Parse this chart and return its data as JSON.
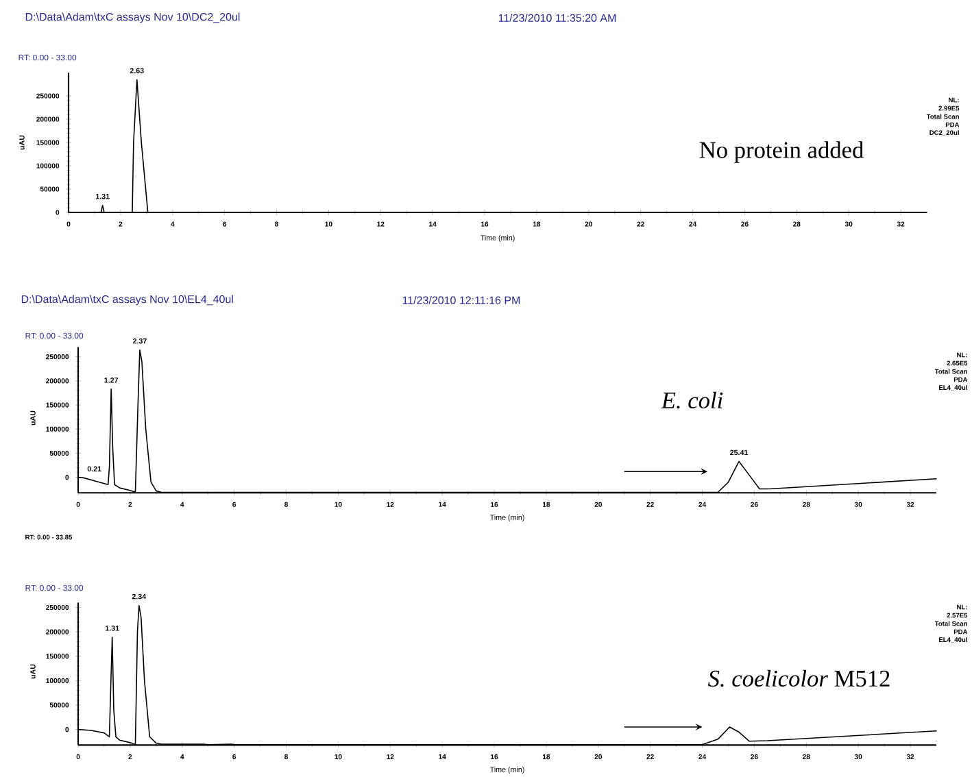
{
  "chart_data": [
    {
      "type": "line",
      "title": "D:\\Data\\Adam\\txC assays Nov 10\\DC2_20ul",
      "subtitle": "11/23/2010 11:35:20 AM",
      "xlabel": "Time (min)",
      "ylabel": "uAU",
      "color": "#000000",
      "x": [
        0,
        1.25,
        1.31,
        1.37,
        2.45,
        2.5,
        2.63,
        2.8,
        3.05,
        33
      ],
      "values": [
        0,
        0,
        15000,
        0,
        0,
        150000,
        285000,
        150000,
        0,
        0
      ],
      "xlim": [
        0,
        33
      ],
      "ylim": [
        0,
        300000
      ],
      "xticks": [
        0,
        2,
        4,
        6,
        8,
        10,
        12,
        14,
        16,
        18,
        20,
        22,
        24,
        26,
        28,
        30,
        32
      ],
      "yticks": [
        0,
        50000,
        100000,
        150000,
        200000,
        250000
      ],
      "annotations": [
        "RT: 0.00 - 33.00",
        "NL:",
        "2.99E5",
        "Total Scan",
        "PDA",
        "DC2_20ul",
        "No protein added",
        {
          "text": "1.31",
          "x": 1.31,
          "y": 15000
        },
        {
          "text": "2.63",
          "x": 2.63,
          "y": 285000
        }
      ]
    },
    {
      "type": "line",
      "title": "D:\\Data\\Adam\\txC assays Nov 10\\EL4_40ul",
      "subtitle": "11/23/2010 12:11:16 PM",
      "xlabel": "Time (min)",
      "ylabel": "uAU",
      "color": "#000000",
      "x": [
        0,
        0.21,
        0.6,
        1.15,
        1.2,
        1.27,
        1.33,
        1.4,
        1.6,
        2.0,
        2.15,
        2.2,
        2.3,
        2.37,
        2.45,
        2.6,
        2.8,
        3.0,
        3.2,
        24.6,
        25.0,
        25.41,
        25.8,
        26.2,
        26.6,
        33
      ],
      "values": [
        0,
        -1000,
        -7000,
        -15000,
        20000,
        183000,
        60000,
        -15000,
        -22000,
        -27000,
        -30000,
        -30000,
        150000,
        264000,
        240000,
        100000,
        -10000,
        -28000,
        -31000,
        -31000,
        -10000,
        33000,
        5000,
        -24000,
        -24000,
        -3000
      ],
      "xlim": [
        0,
        33
      ],
      "ylim": [
        -32000,
        270000
      ],
      "xticks": [
        0,
        2,
        4,
        6,
        8,
        10,
        12,
        14,
        16,
        18,
        20,
        22,
        24,
        26,
        28,
        30,
        32
      ],
      "yticks": [
        0,
        50000,
        100000,
        150000,
        200000,
        250000
      ],
      "annotations": [
        "RT: 0.00 - 33.00",
        "NL:",
        "2.65E5",
        "Total Scan",
        "PDA",
        "EL4_40ul",
        "*E. coli*",
        {
          "text": "0.21",
          "x": 0.21,
          "y": -1000
        },
        {
          "text": "1.27",
          "x": 1.27,
          "y": 183000
        },
        {
          "text": "2.37",
          "x": 2.37,
          "y": 264000
        },
        {
          "text": "25.41",
          "x": 25.41,
          "y": 33000
        }
      ]
    },
    {
      "type": "line",
      "xlabel": "Time (min)",
      "ylabel": "uAU",
      "color": "#000000",
      "x": [
        0,
        0.5,
        1.0,
        1.2,
        1.25,
        1.31,
        1.37,
        1.45,
        1.6,
        2.0,
        2.15,
        2.2,
        2.28,
        2.34,
        2.42,
        2.55,
        2.75,
        3.0,
        3.2,
        4.8,
        5.0,
        5.9,
        6.0,
        24.0,
        24.6,
        25.05,
        25.4,
        25.8,
        26.5,
        33
      ],
      "values": [
        0,
        -2000,
        -7000,
        -15000,
        80000,
        189000,
        40000,
        -15000,
        -22000,
        -27000,
        -30000,
        -30000,
        200000,
        254000,
        230000,
        100000,
        -15000,
        -28000,
        -30000,
        -30000,
        -31000,
        -30000,
        -31000,
        -31000,
        -20000,
        5000,
        -5000,
        -24000,
        -23000,
        -3000
      ],
      "xlim": [
        0,
        33
      ],
      "ylim": [
        -32000,
        260000
      ],
      "xticks": [
        0,
        2,
        4,
        6,
        8,
        10,
        12,
        14,
        16,
        18,
        20,
        22,
        24,
        26,
        28,
        30,
        32
      ],
      "yticks": [
        0,
        50000,
        100000,
        150000,
        200000,
        250000
      ],
      "annotations": [
        "RT: 0.00 - 33.85",
        "RT: 0.00 - 33.00",
        "NL:",
        "2.57E5",
        "Total Scan",
        "PDA",
        "EL4_40ul",
        "*S. coelicolor* M512",
        {
          "text": "1.31",
          "x": 1.31,
          "y": 189000
        },
        {
          "text": "2.34",
          "x": 2.34,
          "y": 254000
        }
      ]
    }
  ]
}
